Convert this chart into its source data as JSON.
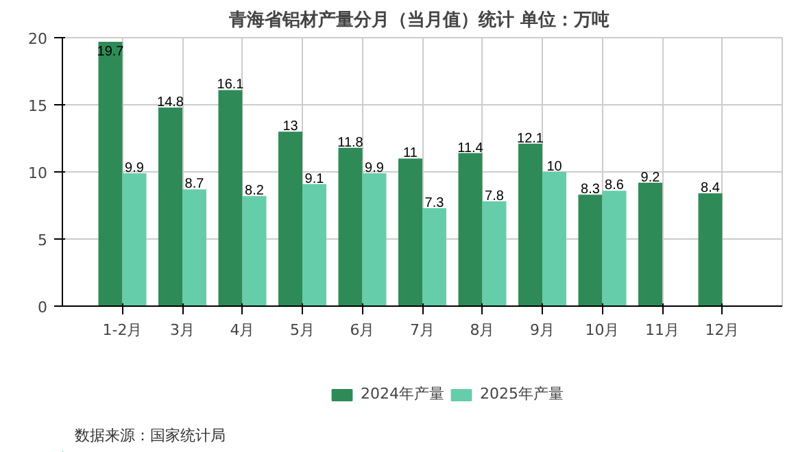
{
  "chart_data": {
    "type": "bar",
    "title": "青海省铝材产量分月（当月值）统计  单位：万吨",
    "categories": [
      "1-2月",
      "3月",
      "4月",
      "5月",
      "6月",
      "7月",
      "8月",
      "9月",
      "10月",
      "11月",
      "12月"
    ],
    "series": [
      {
        "name": "2024年产量",
        "color": "#2e8b57",
        "values": [
          19.7,
          14.8,
          16.1,
          13,
          11.8,
          11,
          11.4,
          12.1,
          8.3,
          9.2,
          8.4
        ]
      },
      {
        "name": "2025年产量",
        "color": "#66cdaa",
        "values": [
          9.9,
          8.7,
          8.2,
          9.1,
          9.9,
          7.3,
          7.8,
          10,
          8.6,
          null,
          null
        ]
      }
    ],
    "ylim": [
      0,
      20
    ],
    "yticks": [
      0,
      5,
      10,
      15,
      20
    ],
    "grid": true,
    "legend": "bottom",
    "data_labels": true,
    "annotations": [
      "数据来源：国家统计局"
    ]
  }
}
